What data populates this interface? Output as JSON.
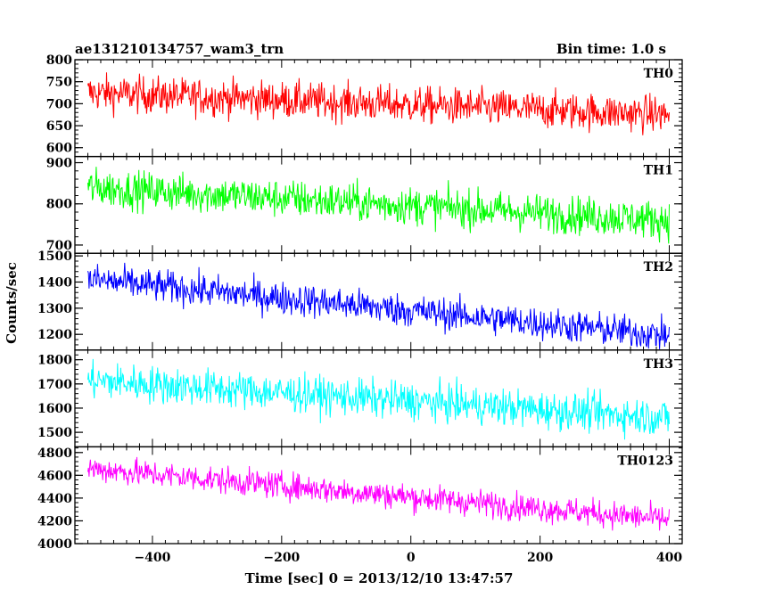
{
  "header": {
    "title": "ae131210134757_wam3_trn",
    "bin_time": "Bin time: 1.0 s"
  },
  "chart_data": {
    "type": "line",
    "xlabel": "Time [sec] 0 = 2013/12/10 13:47:57",
    "ylabel": "Counts/sec",
    "xlim": [
      -520,
      420
    ],
    "x_ticks": [
      -400,
      -200,
      0,
      200,
      400
    ],
    "x_tick_labels": [
      "−400",
      "−200",
      "0",
      "200",
      "400"
    ],
    "x_range": [
      -500,
      400
    ],
    "series": [
      {
        "name": "TH0",
        "color": "#ff0000",
        "ylim": [
          580,
          800
        ],
        "y_ticks": [
          600,
          650,
          700,
          750,
          800
        ],
        "y_tick_labels": [
          "600",
          "650",
          "700",
          "750",
          "800"
        ],
        "trend": {
          "x": [
            -500,
            400
          ],
          "y": [
            725,
            675
          ]
        },
        "noise_amplitude": 30
      },
      {
        "name": "TH1",
        "color": "#00ff00",
        "ylim": [
          680,
          915
        ],
        "y_ticks": [
          700,
          800,
          900
        ],
        "y_tick_labels": [
          "700",
          "800",
          "900"
        ],
        "trend": {
          "x": [
            -500,
            400
          ],
          "y": [
            840,
            760
          ]
        },
        "noise_amplitude": 33
      },
      {
        "name": "TH2",
        "color": "#0000ff",
        "ylim": [
          1140,
          1510
        ],
        "y_ticks": [
          1200,
          1300,
          1400,
          1500
        ],
        "y_tick_labels": [
          "1200",
          "1300",
          "1400",
          "1500"
        ],
        "trend": {
          "x": [
            -500,
            400
          ],
          "y": [
            1410,
            1195
          ]
        },
        "noise_amplitude": 45
      },
      {
        "name": "TH3",
        "color": "#00ffff",
        "ylim": [
          1440,
          1840
        ],
        "y_ticks": [
          1500,
          1600,
          1700,
          1800
        ],
        "y_tick_labels": [
          "1500",
          "1600",
          "1700",
          "1800"
        ],
        "trend": {
          "x": [
            -500,
            400
          ],
          "y": [
            1715,
            1560
          ]
        },
        "noise_amplitude": 55
      },
      {
        "name": "TH0123",
        "color": "#ff00ff",
        "ylim": [
          4000,
          4850
        ],
        "y_ticks": [
          4000,
          4200,
          4400,
          4600,
          4800
        ],
        "y_tick_labels": [
          "4000",
          "4200",
          "4400",
          "4600",
          "4800"
        ],
        "trend": {
          "x": [
            -500,
            400
          ],
          "y": [
            4660,
            4210
          ]
        },
        "noise_amplitude": 85
      }
    ]
  }
}
